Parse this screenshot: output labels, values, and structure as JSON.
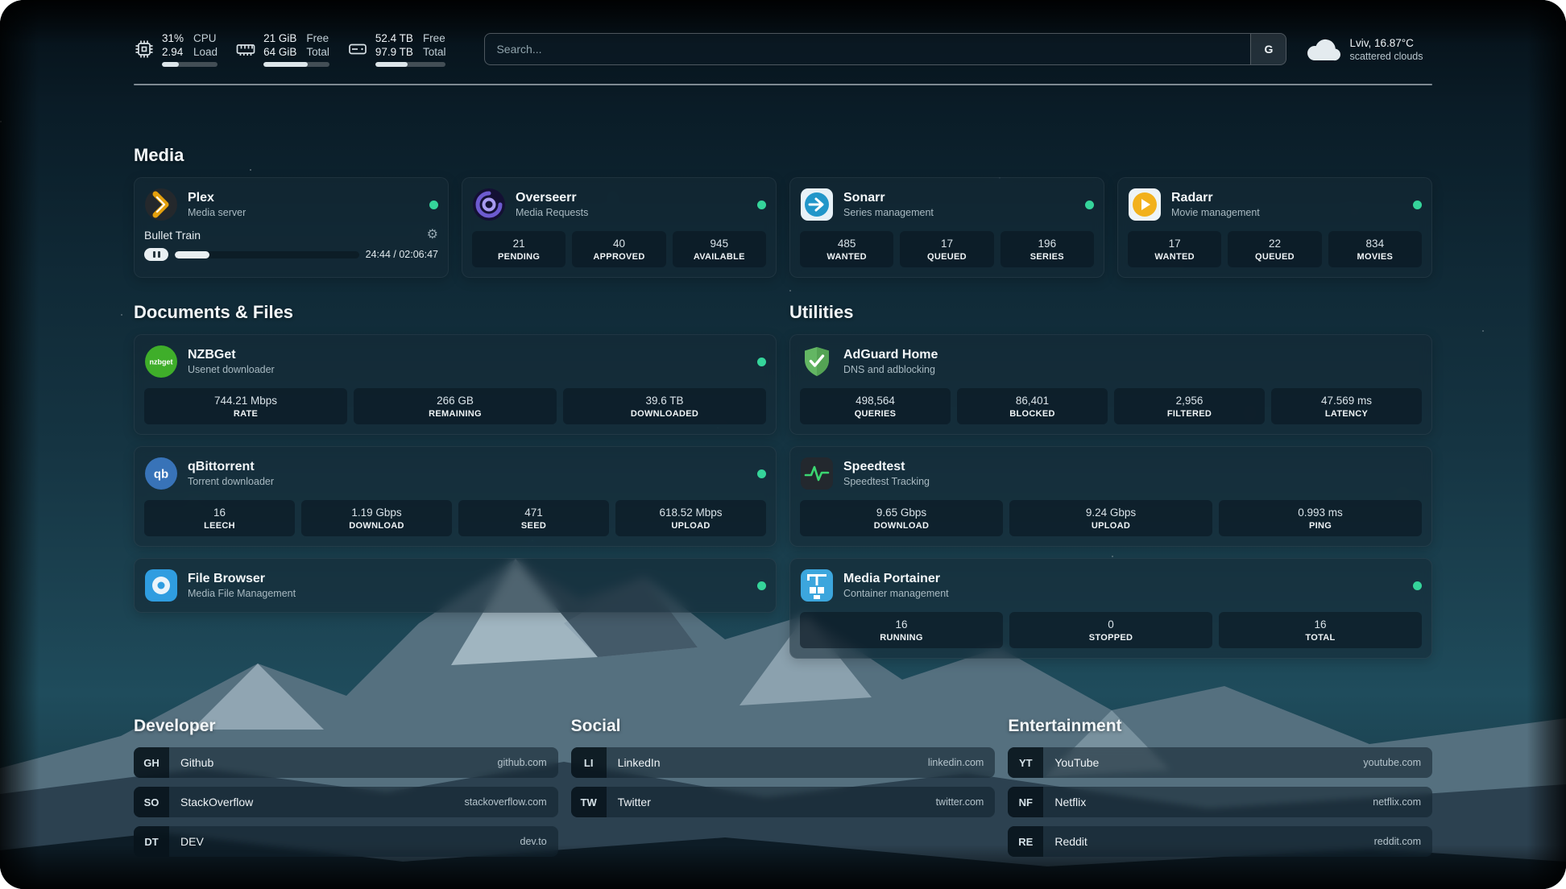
{
  "colors": {
    "status_online": "#35d49a",
    "accent_gold": "#e5a00d"
  },
  "header": {
    "cpu": {
      "row1_value": "31%",
      "row1_label": "CPU",
      "row2_value": "2.94",
      "row2_label": "Load",
      "percent": 31
    },
    "memory": {
      "row1_value": "21 GiB",
      "row1_label": "Free",
      "row2_value": "64 GiB",
      "row2_label": "Total",
      "percent": 67
    },
    "disk": {
      "row1_value": "52.4 TB",
      "row1_label": "Free",
      "row2_value": "97.9 TB",
      "row2_label": "Total",
      "percent": 46
    },
    "search": {
      "placeholder": "Search...",
      "provider_label": "G"
    },
    "weather": {
      "location": "Lviv, 16.87°C",
      "condition": "scattered clouds"
    }
  },
  "sections": {
    "media": "Media",
    "documents": "Documents & Files",
    "utilities": "Utilities",
    "developer": "Developer",
    "social": "Social",
    "entertainment": "Entertainment"
  },
  "services": {
    "plex": {
      "name": "Plex",
      "subtitle": "Media server",
      "status": "online",
      "now_playing": {
        "title": "Bullet Train",
        "time": "24:44 / 02:06:47",
        "progress_percent": 19
      }
    },
    "overseerr": {
      "name": "Overseerr",
      "subtitle": "Media Requests",
      "status": "online",
      "stats": [
        {
          "value": "21",
          "label": "PENDING"
        },
        {
          "value": "40",
          "label": "APPROVED"
        },
        {
          "value": "945",
          "label": "AVAILABLE"
        }
      ]
    },
    "sonarr": {
      "name": "Sonarr",
      "subtitle": "Series management",
      "status": "online",
      "stats": [
        {
          "value": "485",
          "label": "WANTED"
        },
        {
          "value": "17",
          "label": "QUEUED"
        },
        {
          "value": "196",
          "label": "SERIES"
        }
      ]
    },
    "radarr": {
      "name": "Radarr",
      "subtitle": "Movie management",
      "status": "online",
      "stats": [
        {
          "value": "17",
          "label": "WANTED"
        },
        {
          "value": "22",
          "label": "QUEUED"
        },
        {
          "value": "834",
          "label": "MOVIES"
        }
      ]
    },
    "nzbget": {
      "name": "NZBGet",
      "subtitle": "Usenet downloader",
      "status": "online",
      "stats": [
        {
          "value": "744.21 Mbps",
          "label": "RATE"
        },
        {
          "value": "266 GB",
          "label": "REMAINING"
        },
        {
          "value": "39.6 TB",
          "label": "DOWNLOADED"
        }
      ]
    },
    "qbittorrent": {
      "name": "qBittorrent",
      "subtitle": "Torrent downloader",
      "status": "online",
      "stats": [
        {
          "value": "16",
          "label": "LEECH"
        },
        {
          "value": "1.19 Gbps",
          "label": "DOWNLOAD"
        },
        {
          "value": "471",
          "label": "SEED"
        },
        {
          "value": "618.52 Mbps",
          "label": "UPLOAD"
        }
      ]
    },
    "filebrowser": {
      "name": "File Browser",
      "subtitle": "Media File Management",
      "status": "online"
    },
    "adguard": {
      "name": "AdGuard Home",
      "subtitle": "DNS and adblocking",
      "stats": [
        {
          "value": "498,564",
          "label": "QUERIES"
        },
        {
          "value": "86,401",
          "label": "BLOCKED"
        },
        {
          "value": "2,956",
          "label": "FILTERED"
        },
        {
          "value": "47.569 ms",
          "label": "LATENCY"
        }
      ]
    },
    "speedtest": {
      "name": "Speedtest",
      "subtitle": "Speedtest Tracking",
      "stats": [
        {
          "value": "9.65 Gbps",
          "label": "DOWNLOAD"
        },
        {
          "value": "9.24 Gbps",
          "label": "UPLOAD"
        },
        {
          "value": "0.993 ms",
          "label": "PING"
        }
      ]
    },
    "portainer": {
      "name": "Media Portainer",
      "subtitle": "Container management",
      "status": "online",
      "stats": [
        {
          "value": "16",
          "label": "RUNNING"
        },
        {
          "value": "0",
          "label": "STOPPED"
        },
        {
          "value": "16",
          "label": "TOTAL"
        }
      ]
    }
  },
  "bookmarks": {
    "developer": [
      {
        "abbr": "GH",
        "name": "Github",
        "url": "github.com"
      },
      {
        "abbr": "SO",
        "name": "StackOverflow",
        "url": "stackoverflow.com"
      },
      {
        "abbr": "DT",
        "name": "DEV",
        "url": "dev.to"
      }
    ],
    "social": [
      {
        "abbr": "LI",
        "name": "LinkedIn",
        "url": "linkedin.com"
      },
      {
        "abbr": "TW",
        "name": "Twitter",
        "url": "twitter.com"
      }
    ],
    "entertainment": [
      {
        "abbr": "YT",
        "name": "YouTube",
        "url": "youtube.com"
      },
      {
        "abbr": "NF",
        "name": "Netflix",
        "url": "netflix.com"
      },
      {
        "abbr": "RE",
        "name": "Reddit",
        "url": "reddit.com"
      }
    ]
  }
}
